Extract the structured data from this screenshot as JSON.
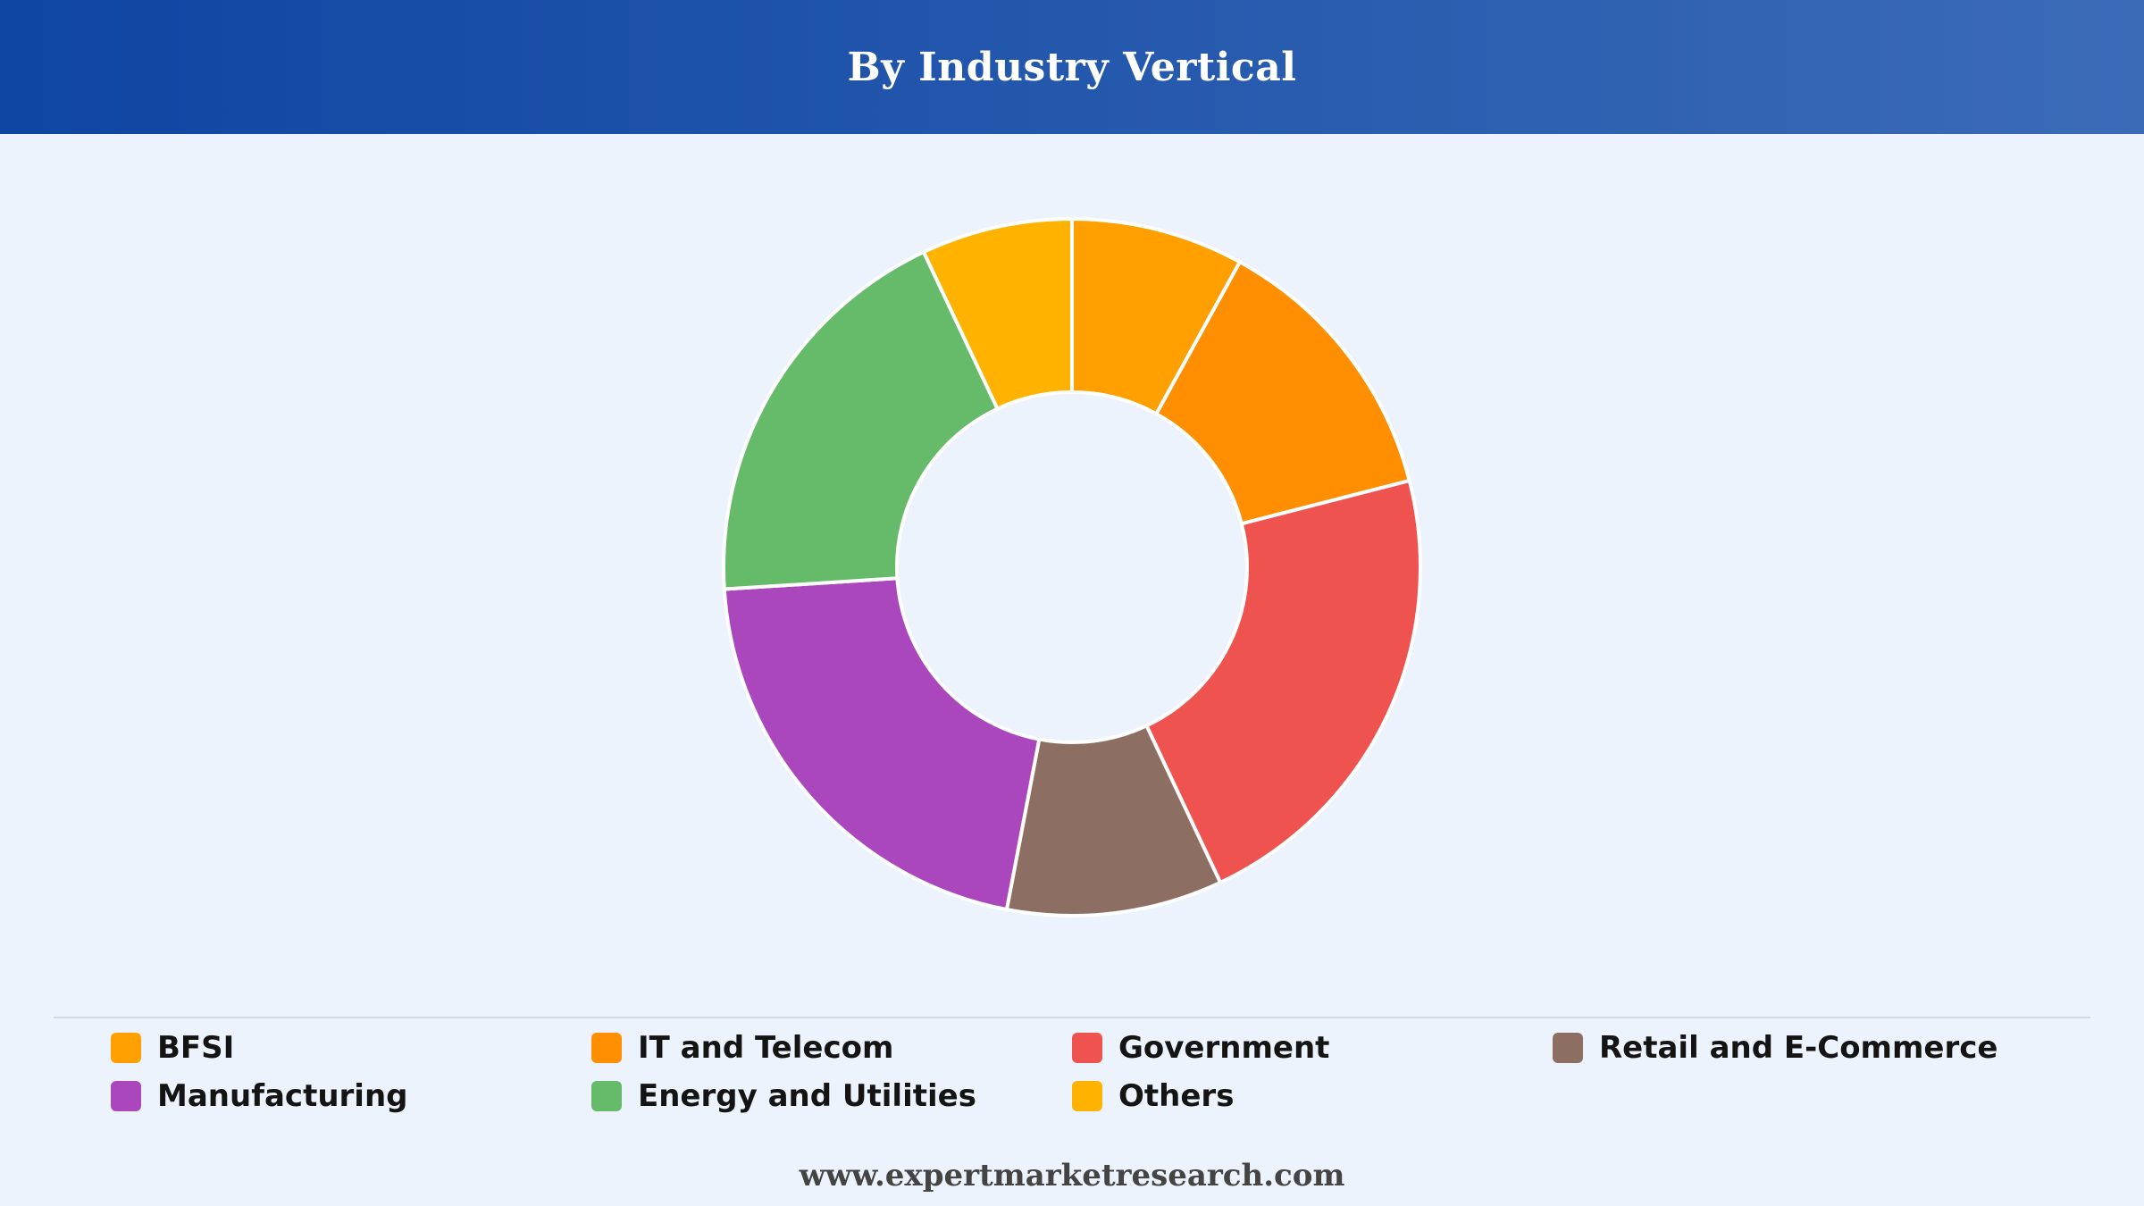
{
  "header": {
    "title": "By Industry Vertical"
  },
  "chart_data": {
    "type": "pie",
    "donut": true,
    "title": "By Industry Vertical",
    "legend_position": "bottom",
    "categories": [
      "BFSI",
      "IT and Telecom",
      "Government",
      "Retail and E-Commerce",
      "Manufacturing",
      "Energy and Utilities",
      "Others"
    ],
    "values": [
      8,
      13,
      22,
      10,
      21,
      19,
      7
    ],
    "colors": [
      "#ffa000",
      "#ff8f00",
      "#ef5350",
      "#8d6e63",
      "#ab47bc",
      "#66bb6a",
      "#ffb300"
    ]
  },
  "footer": {
    "text": "www.expertmarketresearch.com"
  }
}
